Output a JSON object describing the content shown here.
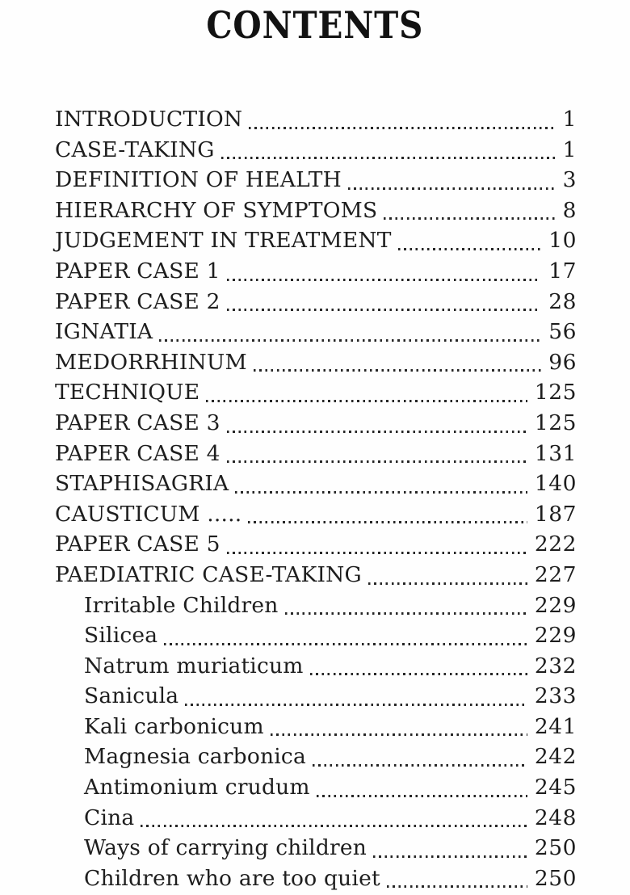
{
  "page": {
    "title": "CONTENTS",
    "background_color": "#fefefe",
    "text_color": "#1e1e1e"
  },
  "toc": {
    "entries": [
      {
        "label": "INTRODUCTION",
        "page": "1",
        "indent": false
      },
      {
        "label": "CASE-TAKING",
        "page": "1",
        "indent": false
      },
      {
        "label": "DEFINITION OF HEALTH",
        "page": "3",
        "indent": false
      },
      {
        "label": "HIERARCHY OF SYMPTOMS",
        "page": "8",
        "indent": false
      },
      {
        "label": "JUDGEMENT IN TREATMENT",
        "page": "10",
        "indent": false
      },
      {
        "label": "PAPER CASE 1",
        "page": "17",
        "indent": false
      },
      {
        "label": "PAPER CASE 2",
        "page": "28",
        "indent": false
      },
      {
        "label": "IGNATIA",
        "page": "56",
        "indent": false
      },
      {
        "label": "MEDORRHINUM",
        "page": "96",
        "indent": false
      },
      {
        "label": "TECHNIQUE",
        "page": "125",
        "indent": false
      },
      {
        "label": "PAPER CASE 3",
        "page": "125",
        "indent": false
      },
      {
        "label": "PAPER CASE 4",
        "page": "131",
        "indent": false
      },
      {
        "label": "STAPHISAGRIA",
        "page": "140",
        "indent": false
      },
      {
        "label": "CAUSTICUM .....",
        "page": "187",
        "indent": false
      },
      {
        "label": "PAPER CASE 5",
        "page": "222",
        "indent": false
      },
      {
        "label": "PAEDIATRIC CASE-TAKING",
        "page": "227",
        "indent": false
      },
      {
        "label": "Irritable Children",
        "page": "229",
        "indent": true
      },
      {
        "label": "Silicea",
        "page": "229",
        "indent": true
      },
      {
        "label": "Natrum muriaticum",
        "page": "232",
        "indent": true
      },
      {
        "label": "Sanicula",
        "page": "233",
        "indent": true
      },
      {
        "label": "Kali carbonicum",
        "page": "241",
        "indent": true
      },
      {
        "label": "Magnesia carbonica",
        "page": "242",
        "indent": true
      },
      {
        "label": "Antimonium crudum",
        "page": "245",
        "indent": true
      },
      {
        "label": "Cina",
        "page": "248",
        "indent": true
      },
      {
        "label": "Ways of carrying children",
        "page": "250",
        "indent": true
      },
      {
        "label": "Children who are too quiet",
        "page": "250",
        "indent": true
      }
    ]
  }
}
